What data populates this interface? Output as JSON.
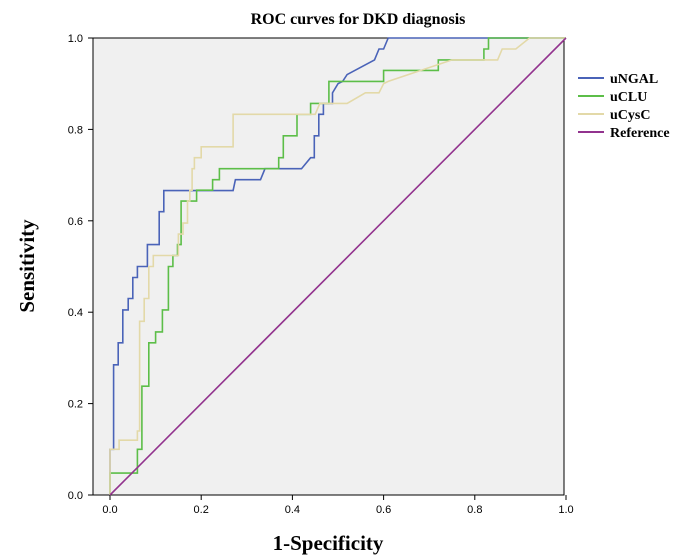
{
  "chart_data": {
    "type": "line",
    "title": "ROC curves for DKD diagnosis",
    "xlabel": "1-Specificity",
    "ylabel": "Sensitivity",
    "xlim": [
      0,
      1
    ],
    "ylim": [
      0,
      1
    ],
    "xticks": [
      "0.0",
      "0.2",
      "0.4",
      "0.6",
      "0.8",
      "1.0"
    ],
    "yticks": [
      "0.0",
      "0.2",
      "0.4",
      "0.6",
      "0.8",
      "1.0"
    ],
    "grid": false,
    "legend_position": "right",
    "background": "#f0f0f0",
    "series": [
      {
        "name": "uNGAL",
        "color": "#4a63b8",
        "x": [
          0,
          0,
          0.008,
          0.008,
          0.018,
          0.018,
          0.028,
          0.028,
          0.04,
          0.04,
          0.05,
          0.05,
          0.06,
          0.06,
          0.072,
          0.072,
          0.082,
          0.082,
          0.09,
          0.09,
          0.108,
          0.108,
          0.118,
          0.118,
          0.13,
          0.13,
          0.15,
          0.155,
          0.22,
          0.27,
          0.275,
          0.29,
          0.33,
          0.34,
          0.35,
          0.42,
          0.44,
          0.44,
          0.448,
          0.448,
          0.458,
          0.458,
          0.468,
          0.468,
          0.478,
          0.478,
          0.488,
          0.488,
          0.5,
          0.51,
          0.52,
          0.58,
          0.59,
          0.6,
          0.61,
          0.62,
          0.65,
          0.68,
          0.72,
          0.8,
          0.85,
          0.9,
          0.95,
          1.0
        ],
        "y": [
          0,
          0.1,
          0.1,
          0.285,
          0.285,
          0.333,
          0.333,
          0.405,
          0.405,
          0.43,
          0.43,
          0.476,
          0.476,
          0.5,
          0.5,
          0.5,
          0.5,
          0.548,
          0.548,
          0.548,
          0.548,
          0.62,
          0.62,
          0.666,
          0.666,
          0.666,
          0.666,
          0.666,
          0.666,
          0.666,
          0.69,
          0.69,
          0.69,
          0.714,
          0.714,
          0.714,
          0.738,
          0.738,
          0.738,
          0.786,
          0.786,
          0.833,
          0.833,
          0.857,
          0.857,
          0.857,
          0.857,
          0.88,
          0.9,
          0.905,
          0.92,
          0.952,
          0.976,
          0.976,
          1.0,
          1.0,
          1.0,
          1.0,
          1.0,
          1.0,
          1.0,
          1.0,
          1.0,
          1.0
        ]
      },
      {
        "name": "uCLU",
        "color": "#5cbe48",
        "x": [
          0,
          0,
          0.06,
          0.06,
          0.07,
          0.07,
          0.085,
          0.085,
          0.1,
          0.1,
          0.115,
          0.115,
          0.128,
          0.128,
          0.138,
          0.138,
          0.148,
          0.148,
          0.156,
          0.156,
          0.19,
          0.19,
          0.21,
          0.21,
          0.225,
          0.225,
          0.24,
          0.24,
          0.27,
          0.36,
          0.37,
          0.37,
          0.38,
          0.38,
          0.395,
          0.395,
          0.41,
          0.41,
          0.44,
          0.44,
          0.46,
          0.46,
          0.48,
          0.48,
          0.55,
          0.55,
          0.6,
          0.6,
          0.72,
          0.72,
          0.8,
          0.8,
          0.82,
          0.82,
          0.83,
          0.83,
          1.0
        ],
        "y": [
          0,
          0.048,
          0.048,
          0.1,
          0.1,
          0.238,
          0.238,
          0.333,
          0.333,
          0.357,
          0.357,
          0.405,
          0.405,
          0.5,
          0.5,
          0.524,
          0.524,
          0.548,
          0.548,
          0.643,
          0.643,
          0.667,
          0.667,
          0.667,
          0.667,
          0.69,
          0.69,
          0.714,
          0.714,
          0.714,
          0.714,
          0.738,
          0.738,
          0.786,
          0.786,
          0.786,
          0.786,
          0.833,
          0.833,
          0.857,
          0.857,
          0.857,
          0.857,
          0.905,
          0.905,
          0.905,
          0.905,
          0.929,
          0.929,
          0.952,
          0.952,
          0.952,
          0.952,
          0.976,
          0.976,
          1.0,
          1.0
        ]
      },
      {
        "name": "uCysC",
        "color": "#e3d9a8",
        "x": [
          0,
          0,
          0.01,
          0.01,
          0.02,
          0.02,
          0.06,
          0.06,
          0.065,
          0.065,
          0.075,
          0.075,
          0.085,
          0.085,
          0.095,
          0.095,
          0.15,
          0.15,
          0.16,
          0.16,
          0.17,
          0.17,
          0.175,
          0.175,
          0.18,
          0.18,
          0.185,
          0.185,
          0.2,
          0.2,
          0.27,
          0.27,
          0.4,
          0.45,
          0.46,
          0.52,
          0.56,
          0.59,
          0.6,
          0.61,
          0.75,
          0.82,
          0.84,
          0.85,
          0.86,
          0.89,
          0.92,
          1.0
        ],
        "y": [
          0,
          0.1,
          0.1,
          0.1,
          0.1,
          0.12,
          0.12,
          0.14,
          0.14,
          0.38,
          0.38,
          0.43,
          0.43,
          0.5,
          0.5,
          0.524,
          0.524,
          0.571,
          0.571,
          0.595,
          0.595,
          0.643,
          0.643,
          0.667,
          0.667,
          0.714,
          0.714,
          0.738,
          0.738,
          0.762,
          0.762,
          0.833,
          0.833,
          0.833,
          0.857,
          0.857,
          0.88,
          0.88,
          0.9,
          0.905,
          0.952,
          0.952,
          0.952,
          0.952,
          0.976,
          0.976,
          1.0,
          1.0
        ]
      },
      {
        "name": "Reference",
        "color": "#92338e",
        "x": [
          0,
          1
        ],
        "y": [
          0,
          1
        ]
      }
    ]
  }
}
